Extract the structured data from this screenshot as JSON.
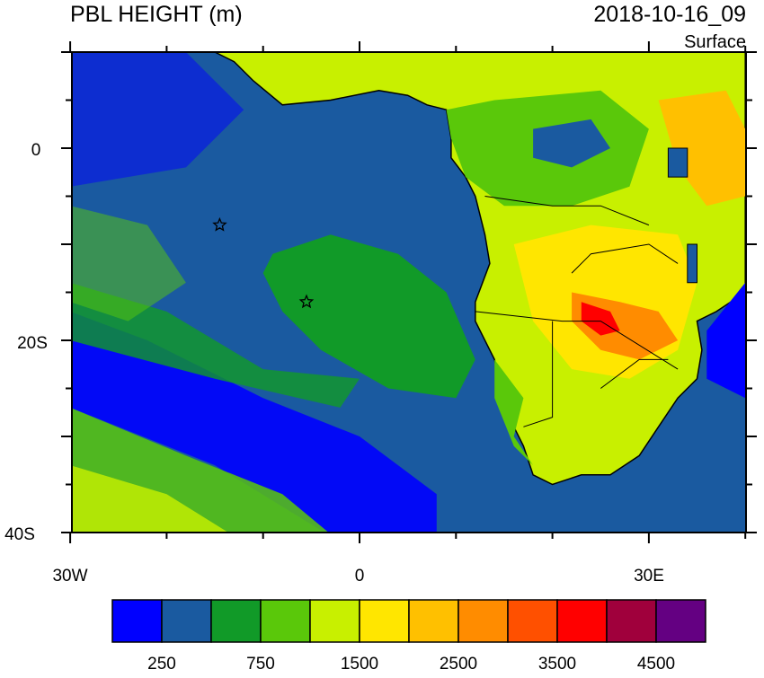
{
  "header": {
    "title": "PBL HEIGHT (m)",
    "datetime": "2018-10-16_09",
    "level": "Surface"
  },
  "axes": {
    "lat_labels": [
      "0",
      "20S",
      "40S"
    ],
    "lon_labels": [
      "30W",
      "0",
      "30E"
    ]
  },
  "colorbar": {
    "colors": [
      "#0000ff",
      "#1a5aa0",
      "#119a28",
      "#5ac80a",
      "#c8f000",
      "#ffe600",
      "#ffc000",
      "#ff8c00",
      "#ff5000",
      "#ff0000",
      "#a0003c",
      "#640082"
    ],
    "labels": [
      250,
      750,
      1500,
      2500,
      3500,
      4500
    ]
  }
}
